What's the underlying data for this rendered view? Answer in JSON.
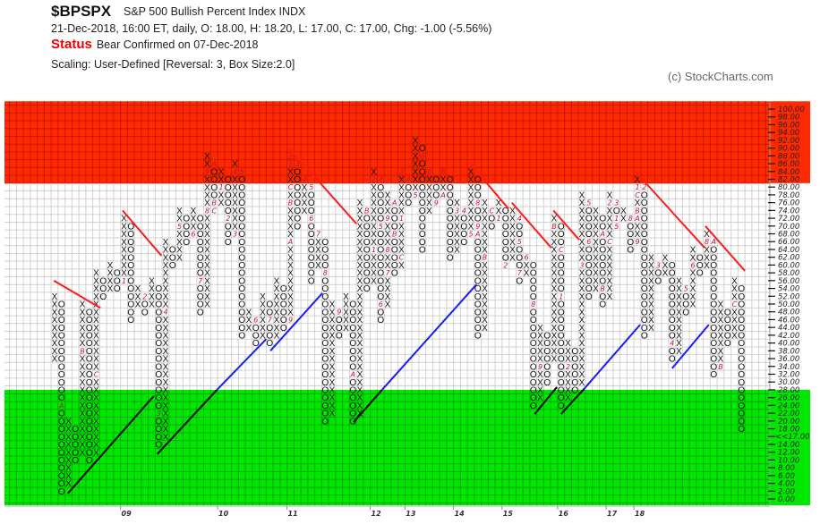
{
  "header": {
    "symbol": "$BPSPX",
    "name": "S&P 500 Bullish Percent Index  INDX",
    "ohlc": "21-Dec-2018, 16:00 ET, daily, O: 18.00, H: 18.20, L: 17.00, C: 17.00, Chg: -1.00 (-5.56%)",
    "status_label": "Status",
    "status_text": "Bear Confirmed on 07-Dec-2018",
    "scaling": "Scaling: User-Defined [Reversal: 3, Box Size:2.0]",
    "copyright": "(c) StockCharts.com"
  },
  "chart_data": {
    "type": "point-and-figure",
    "box_size": 2,
    "reversal": 3,
    "ylim": [
      0,
      100
    ],
    "y_ticks_step": 2,
    "current_value_label": "<<17.00",
    "current_value": 17,
    "bands": [
      {
        "name": "overbought",
        "from": 81,
        "to": 102,
        "color": "#ff2a00",
        "grid": "#c01000"
      },
      {
        "name": "oversold",
        "from": -2,
        "to": 28,
        "color": "#00e800",
        "grid": "#009a00"
      }
    ],
    "colors": {
      "symbol": "#111111",
      "month_label": "#c0103c",
      "bear_line": "#ff1a1a",
      "bull_line": "#1a1aff",
      "support_line": "#000000"
    },
    "columns": [
      [
        "X",
        36,
        52
      ],
      [
        "O",
        2,
        50
      ],
      [
        "X",
        4,
        20
      ],
      [
        "O",
        10,
        18
      ],
      [
        "X",
        12,
        50
      ],
      [
        "O",
        10,
        48
      ],
      [
        "X",
        12,
        58
      ],
      [
        "O",
        52,
        56
      ],
      [
        "X",
        54,
        60
      ],
      [
        "O",
        54,
        58
      ],
      [
        "X",
        56,
        72
      ],
      [
        "O",
        46,
        70
      ],
      [
        "X",
        50,
        54
      ],
      [
        "O",
        48,
        52
      ],
      [
        "X",
        50,
        56
      ],
      [
        "O",
        14,
        54
      ],
      [
        "X",
        16,
        66
      ],
      [
        "O",
        60,
        64
      ],
      [
        "X",
        62,
        74
      ],
      [
        "O",
        66,
        72
      ],
      [
        "X",
        68,
        74
      ],
      [
        "O",
        48,
        72
      ],
      [
        "X",
        50,
        88
      ],
      [
        "O",
        74,
        86
      ],
      [
        "X",
        76,
        84
      ],
      [
        "O",
        66,
        82
      ],
      [
        "X",
        68,
        86
      ],
      [
        "O",
        42,
        84
      ],
      [
        "X",
        44,
        48
      ],
      [
        "O",
        40,
        46
      ],
      [
        "X",
        42,
        52
      ],
      [
        "O",
        40,
        50
      ],
      [
        "X",
        42,
        56
      ],
      [
        "O",
        44,
        54
      ],
      [
        "X",
        46,
        88
      ],
      [
        "O",
        70,
        86
      ],
      [
        "X",
        74,
        82
      ],
      [
        "O",
        56,
        80
      ],
      [
        "X",
        60,
        68
      ],
      [
        "O",
        20,
        66
      ],
      [
        "X",
        22,
        50
      ],
      [
        "O",
        42,
        48
      ],
      [
        "X",
        44,
        52
      ],
      [
        "O",
        20,
        50
      ],
      [
        "X",
        22,
        76
      ],
      [
        "O",
        54,
        74
      ],
      [
        "X",
        56,
        84
      ],
      [
        "O",
        46,
        82
      ],
      [
        "X",
        50,
        78
      ],
      [
        "O",
        58,
        76
      ],
      [
        "X",
        60,
        84
      ],
      [
        "O",
        76,
        82
      ],
      [
        "X",
        78,
        92
      ],
      [
        "O",
        64,
        90
      ],
      [
        "X",
        74,
        84
      ],
      [
        "O",
        76,
        82
      ],
      [
        "X",
        78,
        84
      ],
      [
        "O",
        62,
        82
      ],
      [
        "X",
        64,
        76
      ],
      [
        "O",
        66,
        74
      ],
      [
        "X",
        68,
        84
      ],
      [
        "O",
        42,
        82
      ],
      [
        "X",
        44,
        76
      ],
      [
        "O",
        70,
        74
      ],
      [
        "X",
        72,
        76
      ],
      [
        "O",
        60,
        74
      ],
      [
        "X",
        62,
        74
      ],
      [
        "O",
        56,
        72
      ],
      [
        "X",
        58,
        62
      ],
      [
        "O",
        24,
        60
      ],
      [
        "X",
        26,
        44
      ],
      [
        "O",
        30,
        42
      ],
      [
        "X",
        36,
        72
      ],
      [
        "O",
        24,
        70
      ],
      [
        "X",
        26,
        40
      ],
      [
        "O",
        28,
        38
      ],
      [
        "X",
        30,
        78
      ],
      [
        "O",
        52,
        76
      ],
      [
        "X",
        54,
        74
      ],
      [
        "O",
        50,
        72
      ],
      [
        "X",
        52,
        78
      ],
      [
        "O",
        70,
        76
      ],
      [
        "X",
        72,
        74
      ],
      [
        "O",
        64,
        72
      ],
      [
        "X",
        66,
        82
      ],
      [
        "O",
        42,
        80
      ],
      [
        "X",
        44,
        62
      ],
      [
        "O",
        56,
        60
      ],
      [
        "X",
        58,
        62
      ],
      [
        "O",
        36,
        60
      ],
      [
        "X",
        38,
        56
      ],
      [
        "O",
        48,
        54
      ],
      [
        "X",
        50,
        64
      ],
      [
        "O",
        58,
        62
      ],
      [
        "X",
        60,
        68
      ],
      [
        "O",
        32,
        66
      ],
      [
        "X",
        34,
        50
      ],
      [
        "O",
        40,
        48
      ],
      [
        "X",
        42,
        56
      ],
      [
        "O",
        18,
        54
      ]
    ],
    "month_labels": [
      [
        5,
        38,
        "B"
      ],
      [
        7,
        32,
        "C"
      ],
      [
        2,
        24,
        "A"
      ],
      [
        11,
        56,
        "1"
      ],
      [
        14,
        52,
        "2"
      ],
      [
        16,
        22,
        "3"
      ],
      [
        17,
        48,
        "4"
      ],
      [
        19,
        70,
        "5"
      ],
      [
        21,
        68,
        "6"
      ],
      [
        22,
        56,
        "7"
      ],
      [
        23,
        74,
        "8"
      ],
      [
        23,
        84,
        "9"
      ],
      [
        24,
        86,
        "A"
      ],
      [
        24,
        76,
        "B"
      ],
      [
        24,
        74,
        "C"
      ],
      [
        25,
        80,
        "1"
      ],
      [
        26,
        72,
        "2"
      ],
      [
        27,
        68,
        "3"
      ],
      [
        27,
        84,
        "4"
      ],
      [
        28,
        84,
        "5"
      ],
      [
        30,
        46,
        "6"
      ],
      [
        32,
        46,
        "7"
      ],
      [
        33,
        58,
        "8"
      ],
      [
        35,
        46,
        "9"
      ],
      [
        35,
        66,
        "A"
      ],
      [
        35,
        76,
        "B"
      ],
      [
        35,
        80,
        "C"
      ],
      [
        35,
        86,
        "1"
      ],
      [
        35,
        88,
        "2"
      ],
      [
        36,
        86,
        "3"
      ],
      [
        37,
        82,
        "4"
      ],
      [
        38,
        80,
        "5"
      ],
      [
        38,
        72,
        "6"
      ],
      [
        39,
        68,
        "7"
      ],
      [
        40,
        58,
        "8"
      ],
      [
        42,
        48,
        "9"
      ],
      [
        44,
        32,
        "A"
      ],
      [
        46,
        74,
        "B"
      ],
      [
        47,
        54,
        "C"
      ],
      [
        47,
        64,
        "1"
      ],
      [
        47,
        82,
        "2"
      ],
      [
        48,
        82,
        "4"
      ],
      [
        48,
        70,
        "5"
      ],
      [
        48,
        50,
        "6"
      ],
      [
        49,
        58,
        "7"
      ],
      [
        49,
        64,
        "8"
      ],
      [
        49,
        72,
        "9"
      ],
      [
        50,
        76,
        "A"
      ],
      [
        51,
        72,
        "1"
      ],
      [
        50,
        68,
        "B"
      ],
      [
        51,
        62,
        "C"
      ],
      [
        51,
        84,
        "3"
      ],
      [
        52,
        82,
        "4"
      ],
      [
        53,
        78,
        "5"
      ],
      [
        54,
        88,
        "6"
      ],
      [
        55,
        72,
        "7"
      ],
      [
        56,
        76,
        "9"
      ],
      [
        55,
        84,
        "8"
      ],
      [
        57,
        78,
        "A"
      ],
      [
        57,
        84,
        "B"
      ],
      [
        59,
        74,
        "3"
      ],
      [
        60,
        74,
        "4"
      ],
      [
        62,
        76,
        "8"
      ],
      [
        62,
        70,
        "9"
      ],
      [
        61,
        68,
        "5"
      ],
      [
        62,
        68,
        "A"
      ],
      [
        63,
        62,
        "B"
      ],
      [
        64,
        74,
        "C"
      ],
      [
        65,
        72,
        "1"
      ],
      [
        68,
        72,
        "4"
      ],
      [
        68,
        66,
        "5"
      ],
      [
        66,
        60,
        "2"
      ],
      [
        69,
        62,
        "6"
      ],
      [
        68,
        58,
        "7"
      ],
      [
        70,
        50,
        "8"
      ],
      [
        71,
        34,
        "9"
      ],
      [
        73,
        32,
        "A"
      ],
      [
        74,
        52,
        "1"
      ],
      [
        75,
        34,
        "2"
      ],
      [
        73,
        70,
        "B"
      ],
      [
        74,
        64,
        "C"
      ],
      [
        77,
        60,
        "3"
      ],
      [
        78,
        66,
        "6"
      ],
      [
        80,
        68,
        "A"
      ],
      [
        81,
        66,
        "C"
      ],
      [
        80,
        54,
        "B"
      ],
      [
        79,
        52,
        "7"
      ],
      [
        78,
        76,
        "5"
      ],
      [
        79,
        76,
        "8"
      ],
      [
        80,
        74,
        "9"
      ],
      [
        81,
        76,
        "2"
      ],
      [
        82,
        76,
        "3"
      ],
      [
        82,
        72,
        "1"
      ],
      [
        82,
        70,
        "5"
      ],
      [
        83,
        70,
        "7"
      ],
      [
        84,
        72,
        "8"
      ],
      [
        85,
        72,
        "A"
      ],
      [
        85,
        66,
        "9"
      ],
      [
        85,
        80,
        "1"
      ],
      [
        86,
        80,
        "2"
      ],
      [
        85,
        78,
        "C"
      ],
      [
        85,
        74,
        "B"
      ],
      [
        88,
        60,
        "3"
      ],
      [
        90,
        40,
        "4"
      ],
      [
        92,
        54,
        "5"
      ],
      [
        93,
        60,
        "6"
      ],
      [
        94,
        56,
        "7"
      ],
      [
        95,
        66,
        "8"
      ],
      [
        96,
        66,
        "A"
      ],
      [
        97,
        34,
        "B"
      ],
      [
        99,
        50,
        "C"
      ]
    ],
    "trend_lines": [
      {
        "type": "bear",
        "from": [
          0.9,
          56
        ],
        "to": [
          7.6,
          49
        ]
      },
      {
        "type": "bear",
        "from": [
          10.8,
          74
        ],
        "to": [
          16.4,
          62.4
        ]
      },
      {
        "type": "bear",
        "from": [
          34.8,
          90
        ],
        "to": [
          44.5,
          70.6
        ]
      },
      {
        "type": "bear",
        "from": [
          60.9,
          86
        ],
        "to": [
          66.4,
          74.5
        ]
      },
      {
        "type": "bear",
        "from": [
          66.9,
          76
        ],
        "to": [
          72.6,
          64.4
        ]
      },
      {
        "type": "bear",
        "from": [
          72.9,
          74
        ],
        "to": [
          76.6,
          66.5
        ]
      },
      {
        "type": "bear",
        "from": [
          84.7,
          84
        ],
        "to": [
          94.7,
          64.4
        ]
      },
      {
        "type": "bear",
        "from": [
          94.8,
          70
        ],
        "to": [
          100.5,
          58.5
        ]
      },
      {
        "type": "support",
        "from": [
          2.9,
          1.4
        ],
        "to": [
          15.3,
          26.4
        ]
      },
      {
        "type": "support",
        "from": [
          15.8,
          11.5
        ],
        "to": [
          24.4,
          28
        ]
      },
      {
        "type": "bull",
        "from": [
          24.4,
          28
        ],
        "to": [
          31.5,
          41
        ]
      },
      {
        "type": "bull",
        "from": [
          32.1,
          38
        ],
        "to": [
          39.6,
          52.8
        ]
      },
      {
        "type": "support",
        "from": [
          44.1,
          19.7
        ],
        "to": [
          48.2,
          28
        ]
      },
      {
        "type": "bull",
        "from": [
          48.2,
          28
        ],
        "to": [
          61.8,
          55
        ]
      },
      {
        "type": "support",
        "from": [
          70.2,
          21.8
        ],
        "to": [
          73.4,
          28.7
        ]
      },
      {
        "type": "support",
        "from": [
          74,
          21.8
        ],
        "to": [
          77.3,
          28.2
        ]
      },
      {
        "type": "bull",
        "from": [
          77.3,
          28.2
        ],
        "to": [
          85.4,
          44.7
        ]
      },
      {
        "type": "bull",
        "from": [
          90,
          33.5
        ],
        "to": [
          95.3,
          44.7
        ]
      }
    ],
    "x_labels": [
      [
        11,
        "09"
      ],
      [
        25,
        "10"
      ],
      [
        35,
        "11"
      ],
      [
        47,
        "12"
      ],
      [
        52,
        "13"
      ],
      [
        59,
        "14"
      ],
      [
        66,
        "15"
      ],
      [
        74,
        "16"
      ],
      [
        81,
        "17"
      ],
      [
        85,
        "18"
      ]
    ]
  }
}
